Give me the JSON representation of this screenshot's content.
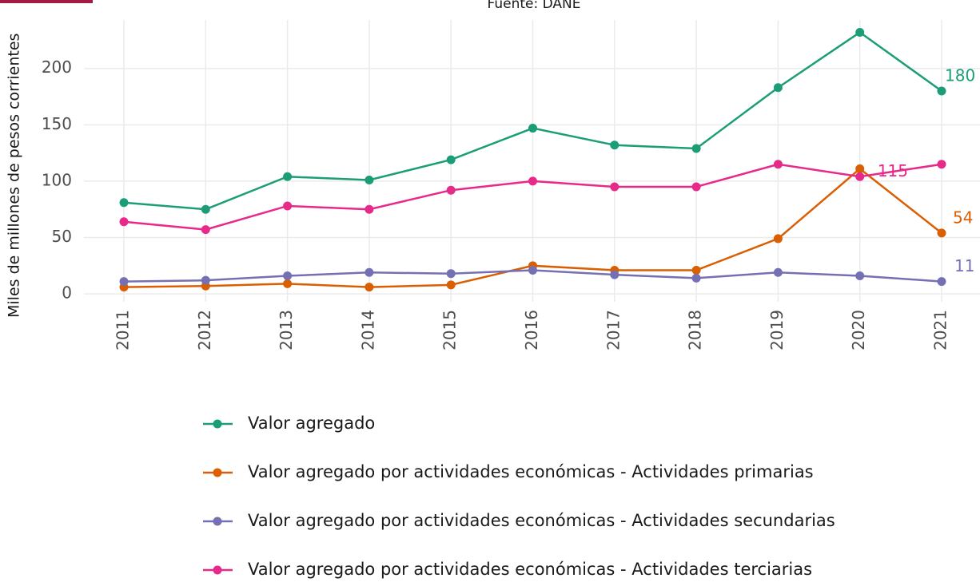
{
  "chart_data": {
    "type": "line",
    "subtitle": "Fuente: DANE",
    "y_label": "Miles de millones de pesos corrientes",
    "categories": [
      "2011",
      "2012",
      "2013",
      "2014",
      "2015",
      "2016",
      "2017",
      "2018",
      "2019",
      "2020",
      "2021"
    ],
    "series": [
      {
        "name": "Valor agregado",
        "color": "#1b9e77",
        "values": [
          81,
          75,
          104,
          101,
          119,
          147,
          132,
          129,
          183,
          232,
          180
        ]
      },
      {
        "name": "Valor agregado por actividades económicas - Actividades primarias",
        "color": "#d95f02",
        "values": [
          6,
          7,
          9,
          6,
          8,
          25,
          21,
          21,
          49,
          111,
          54
        ]
      },
      {
        "name": "Valor agregado por actividades económicas - Actividades secundarias",
        "color": "#7570b3",
        "values": [
          11,
          12,
          16,
          19,
          18,
          21,
          17,
          14,
          19,
          16,
          11
        ]
      },
      {
        "name": "Valor agregado por actividades económicas - Actividades terciarias",
        "color": "#e7298a",
        "values": [
          64,
          57,
          78,
          75,
          92,
          100,
          95,
          95,
          115,
          104,
          115
        ]
      }
    ],
    "ylim": [
      -7,
      243
    ],
    "yticks": [
      0,
      50,
      100,
      150,
      200
    ],
    "grid": true
  }
}
